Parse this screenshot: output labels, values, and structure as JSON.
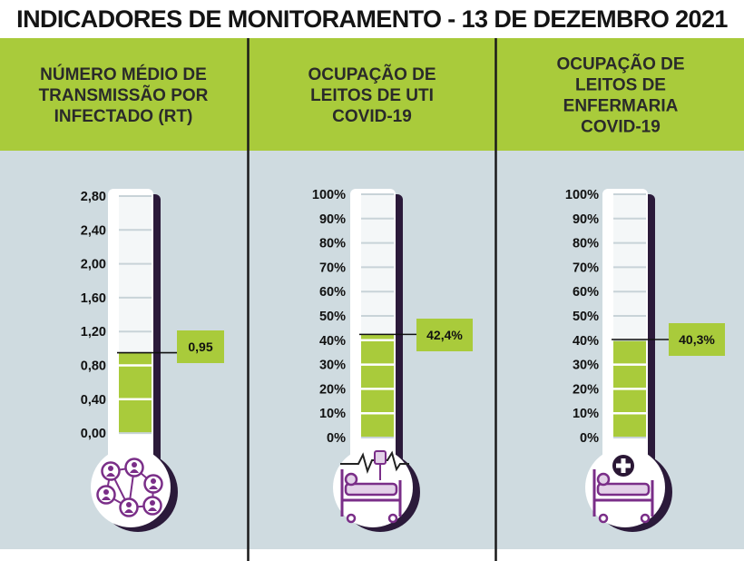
{
  "title": "INDICADORES DE MONITORAMENTO - 13 DE DEZEMBRO 2021",
  "colors": {
    "green": "#a9cb3b",
    "panel": "#cfdbe0",
    "purple": "#7a2e88",
    "dark_purple": "#2b1a3a",
    "icon_fill": "#e3d2e8"
  },
  "chart_data": [
    {
      "type": "thermometer",
      "header": [
        "NÚMERO MÉDIO DE",
        "TRANSMISSÃO POR",
        "INFECTADO (RT)"
      ],
      "ticks": [
        "2,80",
        "2,40",
        "2,00",
        "1,60",
        "1,20",
        "0,80",
        "0,40",
        "0,00"
      ],
      "ylim": [
        0,
        2.8
      ],
      "value": 0.95,
      "value_label": "0,95",
      "icon": "network-people-icon"
    },
    {
      "type": "thermometer",
      "header": [
        "OCUPAÇÃO DE",
        "LEITOS DE UTI",
        "COVID-19"
      ],
      "ticks": [
        "100%",
        "90%",
        "80%",
        "70%",
        "60%",
        "50%",
        "40%",
        "30%",
        "20%",
        "10%",
        "0%"
      ],
      "ylim": [
        0,
        100
      ],
      "value": 42.4,
      "value_label": "42,4%",
      "icon": "icu-bed-icon"
    },
    {
      "type": "thermometer",
      "header": [
        "OCUPAÇÃO DE",
        "LEITOS DE",
        "ENFERMARIA",
        "COVID-19"
      ],
      "ticks": [
        "100%",
        "90%",
        "80%",
        "70%",
        "60%",
        "50%",
        "40%",
        "30%",
        "20%",
        "10%",
        "0%"
      ],
      "ylim": [
        0,
        100
      ],
      "value": 40.3,
      "value_label": "40,3%",
      "icon": "ward-bed-icon"
    }
  ]
}
